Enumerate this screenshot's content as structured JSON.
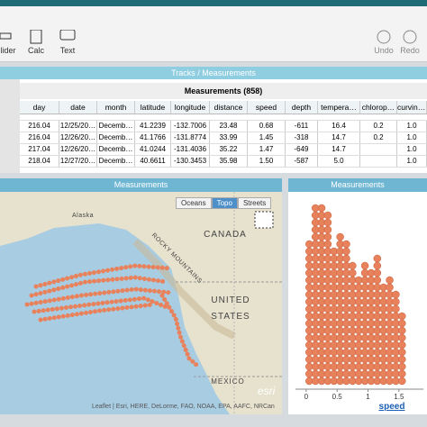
{
  "toolbar": {
    "tools": [
      "lider",
      "Calc",
      "Text"
    ],
    "undo": "Undo",
    "redo": "Redo"
  },
  "table": {
    "title": "Tracks / Measurements",
    "collection": "Measurements (858)",
    "columns": [
      "day",
      "date",
      "month",
      "latitude",
      "longitude",
      "distance",
      "speed",
      "depth",
      "tempera…",
      "chlorop…",
      "curvine…"
    ],
    "rows": [
      [
        "216.04",
        "12/25/20…",
        "Decemb…",
        "41.2239",
        "-132.7006",
        "23.48",
        "0.68",
        "-611",
        "16.4",
        "0.2",
        "1.0"
      ],
      [
        "216.04",
        "12/26/20…",
        "Decemb…",
        "41.1766",
        "-131.8774",
        "33.99",
        "1.45",
        "-318",
        "14.7",
        "0.2",
        "1.0"
      ],
      [
        "217.04",
        "12/26/20…",
        "Decemb…",
        "41.0244",
        "-131.4036",
        "35.22",
        "1.47",
        "-649",
        "14.7",
        "",
        "1.0"
      ],
      [
        "218.04",
        "12/27/20…",
        "Decemb…",
        "40.6611",
        "-130.3453",
        "35.98",
        "1.50",
        "-587",
        "5.0",
        "",
        "1.0"
      ]
    ]
  },
  "map": {
    "title": "Measurements",
    "layers": [
      "Oceans",
      "Topo",
      "Streets"
    ],
    "selected_layer": "Topo",
    "labels": [
      "Alaska",
      "CANADA",
      "ROCKY MOUNTAINS",
      "UNITED",
      "STATES",
      "MEXICO"
    ],
    "attribution": "Leaflet | Esri, HERE, DeLorme, FAO, NOAA, EPA, AAFC, NRCan",
    "logo": "esri"
  },
  "dot_plot": {
    "title": "Measurements",
    "x_label": "speed",
    "xlim": [
      -0.1,
      1.75
    ],
    "xticks": [
      0,
      0.5,
      1,
      1.5
    ],
    "color": "#e8825c",
    "bin_centers": [
      0.05,
      0.15,
      0.25,
      0.35,
      0.45,
      0.55,
      0.65,
      0.75,
      0.85,
      0.95,
      1.05,
      1.15,
      1.25,
      1.35,
      1.45,
      1.55
    ],
    "counts": [
      20,
      25,
      25,
      24,
      19,
      21,
      20,
      17,
      15,
      17,
      16,
      18,
      14,
      15,
      13,
      10
    ]
  }
}
